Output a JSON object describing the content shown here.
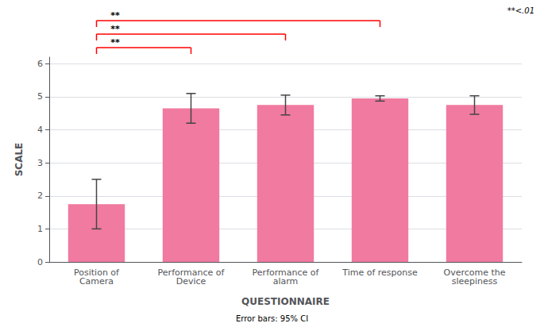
{
  "chart_data": {
    "type": "bar",
    "categories": [
      "Position of\nCamera",
      "Performance of\nDevice",
      "Performance of\nalarm",
      "Time of response",
      "Overcome the\nsleepiness"
    ],
    "values": [
      1.75,
      4.65,
      4.75,
      4.95,
      4.75
    ],
    "errors": {
      "lower": [
        0.75,
        0.45,
        0.3,
        0.08,
        0.28
      ],
      "upper": [
        0.75,
        0.45,
        0.3,
        0.08,
        0.28
      ],
      "color": "#444444"
    },
    "color": "#F07AA0",
    "xlabel": "QUESTIONNAIRE",
    "ylabel": "SCALE",
    "ylim": [
      0,
      6.2
    ],
    "yticks": [
      0,
      1,
      2,
      3,
      4,
      5,
      6
    ],
    "grid": true,
    "significance": [
      {
        "from": "Position of\nCamera",
        "to": "Performance of\nDevice",
        "label": "**",
        "color": "red"
      },
      {
        "from": "Position of\nCamera",
        "to": "Performance of\nalarm",
        "label": "**",
        "color": "red"
      },
      {
        "from": "Position of\nCamera",
        "to": "Time of response",
        "label": "**",
        "color": "red"
      }
    ],
    "annotations": [
      "**<.01",
      "Error bars: 95% CI"
    ]
  }
}
